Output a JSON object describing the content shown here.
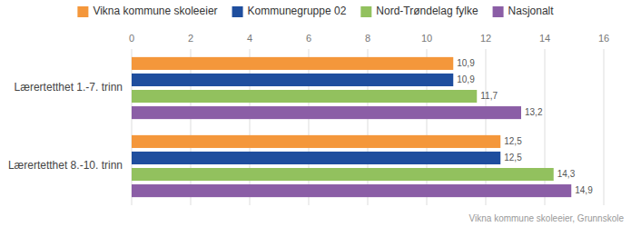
{
  "chart_data": {
    "type": "bar",
    "orientation": "horizontal",
    "subtitle": "Vikna kommune skoleeier, Grunnskole",
    "categories": [
      "Lærertetthet 1.-7. trinn",
      "Lærertetthet 8.-10. trinn"
    ],
    "series": [
      {
        "name": "Vikna kommune skoleeier",
        "color": "#f4973b",
        "values": [
          10.9,
          12.5
        ],
        "value_labels": [
          "10,9",
          "12,5"
        ]
      },
      {
        "name": "Kommunegruppe 02",
        "color": "#1f4e9e",
        "values": [
          10.9,
          12.5
        ],
        "value_labels": [
          "10,9",
          "12,5"
        ]
      },
      {
        "name": "Nord-Trøndelag fylke",
        "color": "#92c15e",
        "values": [
          11.7,
          14.3
        ],
        "value_labels": [
          "11,7",
          "14,3"
        ]
      },
      {
        "name": "Nasjonalt",
        "color": "#8b5ea6",
        "values": [
          13.2,
          14.9
        ],
        "value_labels": [
          "13,2",
          "14,9"
        ]
      }
    ],
    "xlim": [
      0,
      16
    ],
    "xticks": [
      0,
      2,
      4,
      6,
      8,
      10,
      12,
      14,
      16
    ],
    "grid": true,
    "legend": "top",
    "data_labels": true
  }
}
